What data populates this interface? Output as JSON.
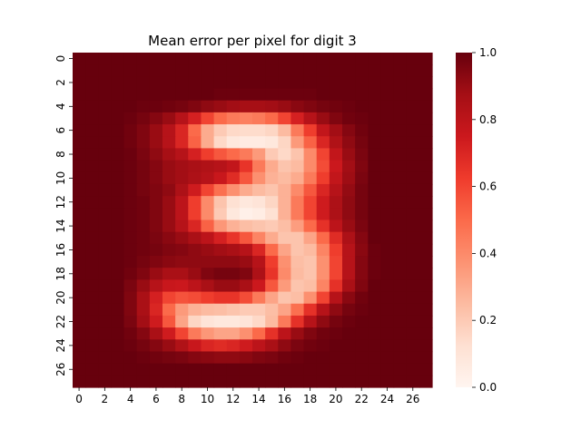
{
  "chart_data": {
    "type": "heatmap",
    "title": "Mean error per pixel for digit 3",
    "xlabel": "",
    "ylabel": "",
    "rows": 28,
    "cols": 28,
    "x_tick_labels": [
      "0",
      "2",
      "4",
      "6",
      "8",
      "10",
      "12",
      "14",
      "16",
      "18",
      "20",
      "22",
      "24",
      "26"
    ],
    "y_tick_labels": [
      "0",
      "2",
      "4",
      "6",
      "8",
      "10",
      "12",
      "14",
      "16",
      "18",
      "20",
      "22",
      "24",
      "26"
    ],
    "colorbar": {
      "colormap": "Reds",
      "vmin": 0.0,
      "vmax": 1.0,
      "tick_labels": [
        "0.0",
        "0.2",
        "0.4",
        "0.6",
        "0.8",
        "1.0"
      ],
      "colors": [
        "#fff5f0",
        "#fee0d2",
        "#fcbba1",
        "#fc9272",
        "#fb6a4a",
        "#ef3b2c",
        "#cb181d",
        "#a50f15",
        "#67000d"
      ]
    },
    "grid": false,
    "values": [
      [
        1.0,
        1.0,
        1.0,
        1.0,
        1.0,
        1.0,
        1.0,
        1.0,
        1.0,
        1.0,
        1.0,
        1.0,
        1.0,
        1.0,
        1.0,
        1.0,
        1.0,
        1.0,
        1.0,
        1.0,
        1.0,
        1.0,
        1.0,
        1.0,
        1.0,
        1.0,
        1.0,
        1.0
      ],
      [
        1.0,
        1.0,
        1.0,
        1.0,
        1.0,
        1.0,
        1.0,
        1.0,
        1.0,
        1.0,
        1.0,
        1.0,
        1.0,
        1.0,
        1.0,
        1.0,
        1.0,
        1.0,
        1.0,
        1.0,
        1.0,
        1.0,
        1.0,
        1.0,
        1.0,
        1.0,
        1.0,
        1.0
      ],
      [
        1.0,
        1.0,
        1.0,
        1.0,
        1.0,
        1.0,
        1.0,
        1.0,
        1.0,
        1.0,
        1.0,
        1.0,
        1.0,
        1.0,
        1.0,
        1.0,
        1.0,
        1.0,
        1.0,
        1.0,
        1.0,
        1.0,
        1.0,
        1.0,
        1.0,
        1.0,
        1.0,
        1.0
      ],
      [
        1.0,
        1.0,
        1.0,
        1.0,
        1.0,
        1.0,
        1.0,
        1.0,
        1.0,
        1.0,
        1.0,
        0.99,
        0.99,
        0.99,
        0.99,
        0.99,
        0.99,
        0.99,
        0.99,
        1.0,
        1.0,
        1.0,
        1.0,
        1.0,
        1.0,
        1.0,
        1.0,
        1.0
      ],
      [
        1.0,
        1.0,
        1.0,
        1.0,
        1.0,
        0.99,
        0.99,
        0.98,
        0.97,
        0.95,
        0.92,
        0.9,
        0.88,
        0.87,
        0.87,
        0.88,
        0.9,
        0.93,
        0.95,
        0.97,
        0.98,
        0.99,
        1.0,
        1.0,
        1.0,
        1.0,
        1.0,
        1.0
      ],
      [
        1.0,
        1.0,
        1.0,
        1.0,
        0.99,
        0.97,
        0.94,
        0.9,
        0.82,
        0.72,
        0.6,
        0.5,
        0.45,
        0.43,
        0.45,
        0.5,
        0.6,
        0.72,
        0.82,
        0.9,
        0.95,
        0.98,
        0.99,
        1.0,
        1.0,
        1.0,
        1.0,
        1.0
      ],
      [
        1.0,
        1.0,
        1.0,
        1.0,
        0.98,
        0.95,
        0.9,
        0.82,
        0.7,
        0.5,
        0.3,
        0.2,
        0.15,
        0.14,
        0.14,
        0.16,
        0.25,
        0.45,
        0.62,
        0.78,
        0.88,
        0.94,
        0.98,
        1.0,
        1.0,
        1.0,
        1.0,
        1.0
      ],
      [
        1.0,
        1.0,
        1.0,
        1.0,
        0.98,
        0.95,
        0.9,
        0.82,
        0.7,
        0.52,
        0.3,
        0.15,
        0.08,
        0.06,
        0.06,
        0.08,
        0.16,
        0.35,
        0.52,
        0.7,
        0.84,
        0.92,
        0.97,
        1.0,
        1.0,
        1.0,
        1.0,
        1.0
      ],
      [
        1.0,
        1.0,
        1.0,
        1.0,
        0.99,
        0.96,
        0.92,
        0.87,
        0.82,
        0.72,
        0.62,
        0.55,
        0.5,
        0.45,
        0.35,
        0.2,
        0.15,
        0.22,
        0.4,
        0.6,
        0.78,
        0.9,
        0.96,
        1.0,
        1.0,
        1.0,
        1.0,
        1.0
      ],
      [
        1.0,
        1.0,
        1.0,
        1.0,
        0.99,
        0.97,
        0.94,
        0.9,
        0.88,
        0.86,
        0.84,
        0.82,
        0.78,
        0.65,
        0.45,
        0.3,
        0.22,
        0.25,
        0.4,
        0.58,
        0.75,
        0.88,
        0.95,
        1.0,
        1.0,
        1.0,
        1.0,
        1.0
      ],
      [
        1.0,
        1.0,
        1.0,
        1.0,
        0.99,
        0.97,
        0.94,
        0.9,
        0.88,
        0.85,
        0.82,
        0.76,
        0.68,
        0.55,
        0.38,
        0.28,
        0.25,
        0.3,
        0.45,
        0.62,
        0.78,
        0.89,
        0.96,
        1.0,
        1.0,
        1.0,
        1.0,
        1.0
      ],
      [
        1.0,
        1.0,
        1.0,
        1.0,
        0.99,
        0.97,
        0.95,
        0.92,
        0.85,
        0.74,
        0.6,
        0.48,
        0.38,
        0.3,
        0.25,
        0.22,
        0.28,
        0.4,
        0.55,
        0.7,
        0.82,
        0.91,
        0.97,
        1.0,
        1.0,
        1.0,
        1.0,
        1.0
      ],
      [
        1.0,
        1.0,
        1.0,
        1.0,
        0.99,
        0.98,
        0.95,
        0.9,
        0.8,
        0.62,
        0.4,
        0.22,
        0.12,
        0.08,
        0.1,
        0.16,
        0.28,
        0.45,
        0.6,
        0.74,
        0.85,
        0.92,
        0.97,
        1.0,
        1.0,
        1.0,
        1.0,
        1.0
      ],
      [
        1.0,
        1.0,
        1.0,
        1.0,
        0.99,
        0.98,
        0.95,
        0.9,
        0.8,
        0.62,
        0.4,
        0.2,
        0.08,
        0.03,
        0.05,
        0.12,
        0.28,
        0.45,
        0.6,
        0.74,
        0.85,
        0.92,
        0.97,
        1.0,
        1.0,
        1.0,
        1.0,
        1.0
      ],
      [
        1.0,
        1.0,
        1.0,
        1.0,
        0.99,
        0.98,
        0.95,
        0.9,
        0.82,
        0.7,
        0.52,
        0.36,
        0.28,
        0.24,
        0.22,
        0.2,
        0.24,
        0.34,
        0.5,
        0.66,
        0.8,
        0.9,
        0.96,
        1.0,
        1.0,
        1.0,
        1.0,
        1.0
      ],
      [
        1.0,
        1.0,
        1.0,
        1.0,
        0.99,
        0.98,
        0.96,
        0.93,
        0.9,
        0.86,
        0.8,
        0.72,
        0.65,
        0.55,
        0.42,
        0.3,
        0.22,
        0.22,
        0.32,
        0.5,
        0.68,
        0.85,
        0.94,
        1.0,
        1.0,
        1.0,
        1.0,
        1.0
      ],
      [
        1.0,
        1.0,
        1.0,
        1.0,
        0.99,
        0.98,
        0.97,
        0.95,
        0.94,
        0.92,
        0.9,
        0.88,
        0.86,
        0.82,
        0.7,
        0.5,
        0.32,
        0.22,
        0.25,
        0.42,
        0.62,
        0.82,
        0.93,
        0.99,
        1.0,
        1.0,
        1.0,
        1.0
      ],
      [
        1.0,
        1.0,
        1.0,
        1.0,
        0.99,
        0.97,
        0.95,
        0.93,
        0.92,
        0.92,
        0.92,
        0.92,
        0.92,
        0.9,
        0.82,
        0.62,
        0.38,
        0.24,
        0.22,
        0.38,
        0.6,
        0.82,
        0.94,
        0.99,
        1.0,
        1.0,
        1.0,
        1.0
      ],
      [
        1.0,
        1.0,
        1.0,
        1.0,
        0.98,
        0.95,
        0.9,
        0.86,
        0.86,
        0.9,
        0.95,
        0.97,
        0.97,
        0.95,
        0.85,
        0.65,
        0.4,
        0.25,
        0.22,
        0.38,
        0.6,
        0.82,
        0.94,
        0.99,
        1.0,
        1.0,
        1.0,
        1.0
      ],
      [
        1.0,
        1.0,
        1.0,
        1.0,
        0.96,
        0.9,
        0.82,
        0.76,
        0.75,
        0.8,
        0.86,
        0.9,
        0.9,
        0.86,
        0.75,
        0.55,
        0.35,
        0.22,
        0.24,
        0.42,
        0.66,
        0.86,
        0.95,
        1.0,
        1.0,
        1.0,
        1.0,
        1.0
      ],
      [
        1.0,
        1.0,
        1.0,
        1.0,
        0.95,
        0.86,
        0.72,
        0.6,
        0.56,
        0.58,
        0.62,
        0.65,
        0.65,
        0.58,
        0.45,
        0.32,
        0.22,
        0.24,
        0.38,
        0.6,
        0.82,
        0.93,
        0.98,
        1.0,
        1.0,
        1.0,
        1.0,
        1.0
      ],
      [
        1.0,
        1.0,
        1.0,
        1.0,
        0.95,
        0.86,
        0.7,
        0.5,
        0.35,
        0.28,
        0.25,
        0.24,
        0.22,
        0.2,
        0.2,
        0.24,
        0.32,
        0.48,
        0.66,
        0.82,
        0.92,
        0.97,
        0.99,
        1.0,
        1.0,
        1.0,
        1.0,
        1.0
      ],
      [
        1.0,
        1.0,
        1.0,
        1.0,
        0.96,
        0.88,
        0.74,
        0.55,
        0.32,
        0.16,
        0.1,
        0.08,
        0.08,
        0.1,
        0.15,
        0.25,
        0.45,
        0.66,
        0.82,
        0.92,
        0.97,
        0.99,
        1.0,
        1.0,
        1.0,
        1.0,
        1.0,
        1.0
      ],
      [
        1.0,
        1.0,
        1.0,
        1.0,
        0.98,
        0.94,
        0.86,
        0.74,
        0.6,
        0.45,
        0.36,
        0.32,
        0.32,
        0.38,
        0.5,
        0.66,
        0.8,
        0.9,
        0.95,
        0.98,
        0.99,
        1.0,
        1.0,
        1.0,
        1.0,
        1.0,
        1.0,
        1.0
      ],
      [
        1.0,
        1.0,
        1.0,
        1.0,
        0.99,
        0.97,
        0.94,
        0.9,
        0.84,
        0.76,
        0.7,
        0.68,
        0.7,
        0.74,
        0.8,
        0.86,
        0.92,
        0.96,
        0.98,
        0.99,
        1.0,
        1.0,
        1.0,
        1.0,
        1.0,
        1.0,
        1.0,
        1.0
      ],
      [
        1.0,
        1.0,
        1.0,
        1.0,
        1.0,
        0.99,
        0.98,
        0.97,
        0.96,
        0.94,
        0.93,
        0.92,
        0.92,
        0.93,
        0.95,
        0.96,
        0.98,
        0.99,
        1.0,
        1.0,
        1.0,
        1.0,
        1.0,
        1.0,
        1.0,
        1.0,
        1.0,
        1.0
      ],
      [
        1.0,
        1.0,
        1.0,
        1.0,
        1.0,
        1.0,
        1.0,
        1.0,
        1.0,
        1.0,
        1.0,
        1.0,
        1.0,
        1.0,
        1.0,
        1.0,
        1.0,
        1.0,
        1.0,
        1.0,
        1.0,
        1.0,
        1.0,
        1.0,
        1.0,
        1.0,
        1.0,
        1.0
      ],
      [
        1.0,
        1.0,
        1.0,
        1.0,
        1.0,
        1.0,
        1.0,
        1.0,
        1.0,
        1.0,
        1.0,
        1.0,
        1.0,
        1.0,
        1.0,
        1.0,
        1.0,
        1.0,
        1.0,
        1.0,
        1.0,
        1.0,
        1.0,
        1.0,
        1.0,
        1.0,
        1.0,
        1.0
      ]
    ]
  }
}
